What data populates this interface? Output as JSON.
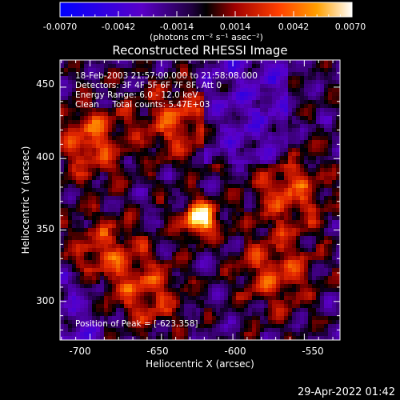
{
  "colorbar": {
    "tick_labels": [
      "-0.0070",
      "-0.0042",
      "-0.0014",
      "0.0014",
      "0.0042",
      "0.0070"
    ],
    "units_label": "(photons cm⁻² s⁻¹ asec⁻²)"
  },
  "title": "Reconstructed RHESSI Image",
  "info": {
    "line1": "18-Feb-2003 21:57:00.000 to 21:58:08.000",
    "line2": "Detectors: 3F 4F 5F 6F 7F 8F, Att 0",
    "line3": "Energy Range: 6.0 - 12.0 keV",
    "line4": "Clean     Total counts: 5.47E+03"
  },
  "peak_text": "Position of Peak = [-623,358]",
  "axes": {
    "x_label": "Heliocentric X (arcsec)",
    "y_label": "Heliocentric Y (arcsec)",
    "x_ticks": [
      "-700",
      "-650",
      "-600",
      "-550"
    ],
    "y_ticks": [
      "300",
      "350",
      "400",
      "450"
    ]
  },
  "timestamp": "29-Apr-2022 01:42",
  "colors": {
    "background": "#000000",
    "foreground": "#ffffff",
    "scale": [
      "#0000ff",
      "#5a00c8",
      "#300060",
      "#000000",
      "#a00000",
      "#ff4000",
      "#ffa000",
      "#ffff80",
      "#ffffff"
    ]
  },
  "image": {
    "x_range": [
      -721,
      -525
    ],
    "y_range": [
      273,
      469
    ],
    "peak": [
      -623,
      358
    ],
    "sources": [
      {
        "x": -623,
        "y": 358,
        "level": 1.0
      },
      {
        "x": -700,
        "y": 412,
        "level": 0.55
      },
      {
        "x": -640,
        "y": 425,
        "level": 0.5
      },
      {
        "x": -560,
        "y": 375,
        "level": 0.5
      },
      {
        "x": -690,
        "y": 335,
        "level": 0.45
      },
      {
        "x": -570,
        "y": 320,
        "level": 0.5
      },
      {
        "x": -660,
        "y": 305,
        "level": 0.45
      }
    ]
  }
}
